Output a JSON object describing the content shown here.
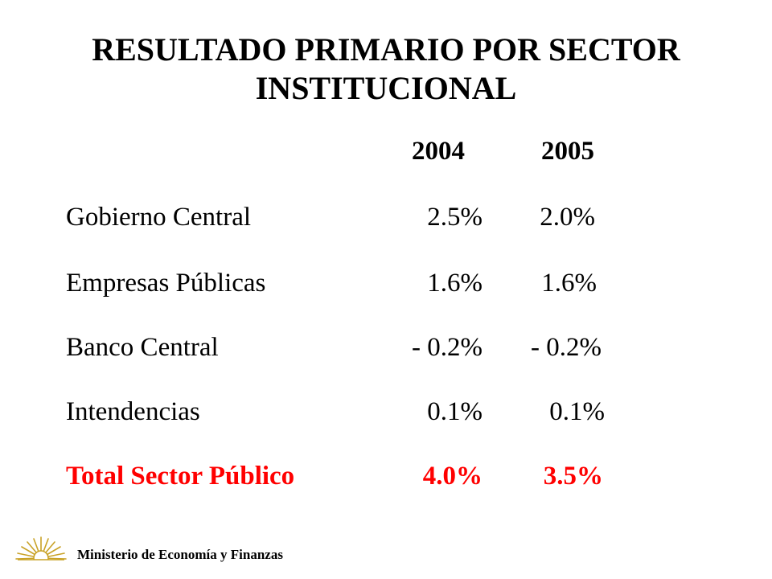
{
  "title": {
    "line1": "RESULTADO PRIMARIO POR SECTOR",
    "line2": "INSTITUCIONAL"
  },
  "table": {
    "headers": [
      "2004",
      "2005"
    ],
    "rows": [
      {
        "label": "Gobierno Central",
        "v2004": "2.5%",
        "v2005": "2.0%"
      },
      {
        "label": "Empresas Públicas",
        "v2004": "1.6%",
        "v2005": "1.6%"
      },
      {
        "label": "Banco Central",
        "v2004": "- 0.2%",
        "v2005": "- 0.2%"
      },
      {
        "label": "Intendencias",
        "v2004": "0.1%",
        "v2005": "0.1%"
      }
    ],
    "total": {
      "label": "Total Sector Público",
      "v2004": "4.0%",
      "v2005": "3.5%"
    }
  },
  "footer": {
    "ministry": "Ministerio de Economía y Finanzas",
    "logo_icon": "sun-emblem-icon"
  },
  "colors": {
    "text": "#000000",
    "total": "#ff0000",
    "logo": "#c9a227"
  }
}
